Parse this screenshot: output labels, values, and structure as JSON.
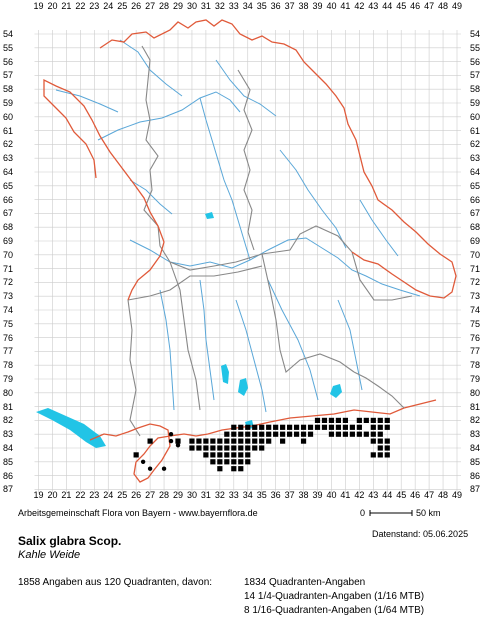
{
  "x_labels": [
    "19",
    "20",
    "21",
    "22",
    "23",
    "24",
    "25",
    "26",
    "27",
    "28",
    "29",
    "30",
    "31",
    "32",
    "33",
    "34",
    "35",
    "36",
    "37",
    "38",
    "39",
    "40",
    "41",
    "42",
    "43",
    "44",
    "45",
    "46",
    "47",
    "48",
    "49"
  ],
  "y_labels": [
    "54",
    "55",
    "56",
    "57",
    "58",
    "59",
    "60",
    "61",
    "62",
    "63",
    "64",
    "65",
    "66",
    "67",
    "68",
    "69",
    "70",
    "71",
    "72",
    "73",
    "74",
    "75",
    "76",
    "77",
    "78",
    "79",
    "80",
    "81",
    "82",
    "83",
    "84",
    "85",
    "86",
    "87"
  ],
  "credit": "Arbeitsgemeinschaft Flora von Bayern - www.bayernflora.de",
  "scale": {
    "zero": "0",
    "end": "50 km"
  },
  "date_label": "Datenstand: 05.06.2025",
  "title": "Salix glabra Scop.",
  "subtitle": "Kahle Weide",
  "summary": "1858 Angaben aus 120 Quadranten, davon:",
  "stats": [
    "1834 Quadranten-Angaben",
    "14 1/4-Quadranten-Angaben (1/16 MTB)",
    "8 1/16-Quadranten-Angaben (1/64 MTB)"
  ],
  "colors": {
    "grid": "#cccccc",
    "border": "#e05a3a",
    "district": "#888888",
    "river": "#5aa7d8",
    "lake": "#22c4e6",
    "marker": "#000000"
  },
  "occurrence_squares": [
    [
      39,
      82
    ],
    [
      39.5,
      82
    ],
    [
      40,
      82
    ],
    [
      40.5,
      82
    ],
    [
      41,
      82
    ],
    [
      42,
      82
    ],
    [
      42.5,
      82
    ],
    [
      43,
      82
    ],
    [
      43.5,
      82
    ],
    [
      44,
      82
    ],
    [
      33,
      82.5
    ],
    [
      33.5,
      82.5
    ],
    [
      34,
      82.5
    ],
    [
      34.5,
      82.5
    ],
    [
      35,
      82.5
    ],
    [
      35.5,
      82.5
    ],
    [
      36,
      82.5
    ],
    [
      36.5,
      82.5
    ],
    [
      37,
      82.5
    ],
    [
      37.5,
      82.5
    ],
    [
      38,
      82.5
    ],
    [
      38.5,
      82.5
    ],
    [
      39,
      82.5
    ],
    [
      39.5,
      82.5
    ],
    [
      40,
      82.5
    ],
    [
      40.5,
      82.5
    ],
    [
      41,
      82.5
    ],
    [
      41.5,
      82.5
    ],
    [
      42,
      82.5
    ],
    [
      43,
      82.5
    ],
    [
      43.5,
      82.5
    ],
    [
      44,
      82.5
    ],
    [
      32.5,
      83
    ],
    [
      33,
      83
    ],
    [
      33.5,
      83
    ],
    [
      34,
      83
    ],
    [
      34.5,
      83
    ],
    [
      35,
      83
    ],
    [
      35.5,
      83
    ],
    [
      36,
      83
    ],
    [
      36.5,
      83
    ],
    [
      37,
      83
    ],
    [
      37.5,
      83
    ],
    [
      38,
      83
    ],
    [
      38.5,
      83
    ],
    [
      40,
      83
    ],
    [
      40.5,
      83
    ],
    [
      41,
      83
    ],
    [
      41.5,
      83
    ],
    [
      42,
      83
    ],
    [
      42.5,
      83
    ],
    [
      43,
      83
    ],
    [
      43.5,
      83
    ],
    [
      30,
      83.5
    ],
    [
      30.5,
      83.5
    ],
    [
      31,
      83.5
    ],
    [
      31.5,
      83.5
    ],
    [
      32,
      83.5
    ],
    [
      32.5,
      83.5
    ],
    [
      33,
      83.5
    ],
    [
      33.5,
      83.5
    ],
    [
      34,
      83.5
    ],
    [
      34.5,
      83.5
    ],
    [
      35,
      83.5
    ],
    [
      35.5,
      83.5
    ],
    [
      36.5,
      83.5
    ],
    [
      38,
      83.5
    ],
    [
      43,
      83.5
    ],
    [
      43.5,
      83.5
    ],
    [
      44,
      83.5
    ],
    [
      30,
      84
    ],
    [
      30.5,
      84
    ],
    [
      31,
      84
    ],
    [
      31.5,
      84
    ],
    [
      32,
      84
    ],
    [
      32.5,
      84
    ],
    [
      33,
      84
    ],
    [
      33.5,
      84
    ],
    [
      34,
      84
    ],
    [
      34.5,
      84
    ],
    [
      35,
      84
    ],
    [
      43.5,
      84
    ],
    [
      44,
      84
    ],
    [
      31,
      84.5
    ],
    [
      31.5,
      84.5
    ],
    [
      32,
      84.5
    ],
    [
      32.5,
      84.5
    ],
    [
      33,
      84.5
    ],
    [
      33.5,
      84.5
    ],
    [
      34,
      84.5
    ],
    [
      43,
      84.5
    ],
    [
      43.5,
      84.5
    ],
    [
      44,
      84.5
    ],
    [
      31.5,
      85
    ],
    [
      32,
      85
    ],
    [
      32.5,
      85
    ],
    [
      33,
      85
    ],
    [
      33.5,
      85
    ],
    [
      34,
      85
    ],
    [
      26,
      84.5
    ],
    [
      27,
      83.5
    ],
    [
      29,
      83.5
    ],
    [
      32,
      85.5
    ],
    [
      33,
      85.5
    ],
    [
      33.5,
      85.5
    ]
  ],
  "occurrence_dots": [
    [
      26.5,
      85
    ],
    [
      27,
      85.5
    ],
    [
      28,
      85.5
    ],
    [
      28.5,
      83
    ],
    [
      29,
      83.8
    ],
    [
      28.5,
      83.5
    ]
  ]
}
